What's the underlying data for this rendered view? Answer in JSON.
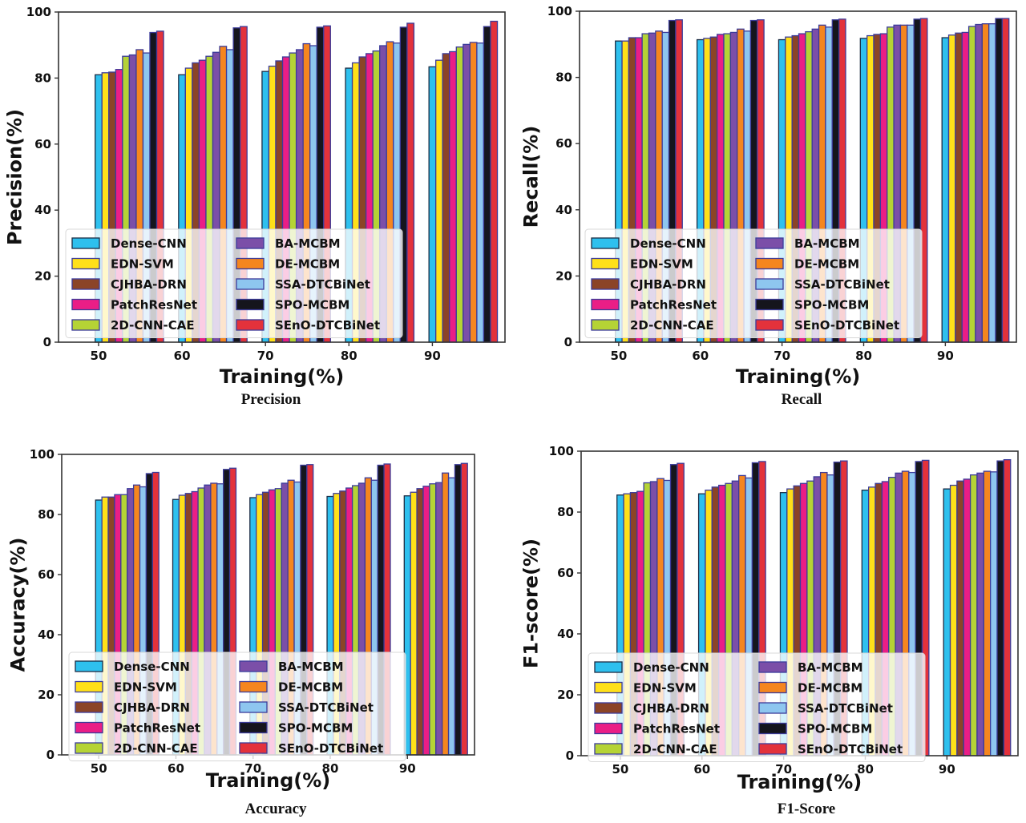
{
  "series_names": [
    "Dense-CNN",
    "EDN-SVM",
    "CJHBA-DRN",
    "PatchResNet",
    "2D-CNN-CAE",
    "BA-MCBM",
    "DE-MCBM",
    "SSA-DTCBiNet",
    "SPO-MCBM",
    "SEnO-DTCBiNet"
  ],
  "series_colors": [
    "#2ec0ee",
    "#ffe019",
    "#8b4427",
    "#ea1e86",
    "#b5d335",
    "#7b4fa8",
    "#f5861f",
    "#8ec6ef",
    "#15151d",
    "#e3323b"
  ],
  "chart_data": [
    {
      "type": "bar",
      "title": "Precision",
      "xlabel": "Training(%)",
      "ylabel": "Precision(%)",
      "categories": [
        "50",
        "60",
        "70",
        "80",
        "90"
      ],
      "ylim": [
        0,
        100
      ],
      "yticks": [
        "0",
        "20",
        "40",
        "60",
        "80",
        "100"
      ],
      "legend": "lower-left",
      "series": [
        {
          "name": "Dense-CNN",
          "values": [
            81.0,
            81.0,
            82.0,
            83.0,
            83.4
          ]
        },
        {
          "name": "EDN-SVM",
          "values": [
            81.6,
            83.0,
            83.6,
            84.6,
            85.4
          ]
        },
        {
          "name": "CJHBA-DRN",
          "values": [
            81.8,
            84.6,
            85.2,
            86.4,
            87.4
          ]
        },
        {
          "name": "PatchResNet",
          "values": [
            82.6,
            85.4,
            86.4,
            87.4,
            88.0
          ]
        },
        {
          "name": "2D-CNN-CAE",
          "values": [
            86.6,
            86.6,
            87.6,
            88.2,
            89.4
          ]
        },
        {
          "name": "BA-MCBM",
          "values": [
            87.0,
            87.8,
            88.6,
            89.8,
            90.2
          ]
        },
        {
          "name": "DE-MCBM",
          "values": [
            88.6,
            89.6,
            90.4,
            91.0,
            90.8
          ]
        },
        {
          "name": "SSA-DTCBiNet",
          "values": [
            87.6,
            88.6,
            89.8,
            90.6,
            90.6
          ]
        },
        {
          "name": "SPO-MCBM",
          "values": [
            93.8,
            95.2,
            95.4,
            95.4,
            95.6
          ]
        },
        {
          "name": "SEnO-DTCBiNet",
          "values": [
            94.2,
            95.6,
            95.8,
            96.6,
            97.2
          ]
        }
      ]
    },
    {
      "type": "bar",
      "title": "Recall",
      "xlabel": "Training(%)",
      "ylabel": "Recall(%)",
      "categories": [
        "50",
        "60",
        "70",
        "80",
        "90"
      ],
      "ylim": [
        0,
        100
      ],
      "yticks": [
        "0",
        "20",
        "40",
        "60",
        "80",
        "100"
      ],
      "legend": "lower-left",
      "series": [
        {
          "name": "Dense-CNN",
          "values": [
            91.0,
            91.4,
            91.4,
            91.8,
            92.0
          ]
        },
        {
          "name": "EDN-SVM",
          "values": [
            91.0,
            91.8,
            92.2,
            92.6,
            92.8
          ]
        },
        {
          "name": "CJHBA-DRN",
          "values": [
            92.0,
            92.2,
            92.6,
            93.0,
            93.4
          ]
        },
        {
          "name": "PatchResNet",
          "values": [
            92.0,
            93.0,
            93.2,
            93.2,
            93.6
          ]
        },
        {
          "name": "2D-CNN-CAE",
          "values": [
            93.2,
            93.2,
            93.8,
            95.2,
            95.4
          ]
        },
        {
          "name": "BA-MCBM",
          "values": [
            93.4,
            93.6,
            94.6,
            95.8,
            96.0
          ]
        },
        {
          "name": "DE-MCBM",
          "values": [
            94.0,
            94.6,
            95.8,
            95.8,
            96.2
          ]
        },
        {
          "name": "SSA-DTCBiNet",
          "values": [
            93.6,
            94.0,
            95.2,
            95.8,
            96.2
          ]
        },
        {
          "name": "SPO-MCBM",
          "values": [
            97.2,
            97.2,
            97.4,
            97.6,
            97.8
          ]
        },
        {
          "name": "SEnO-DTCBiNet",
          "values": [
            97.4,
            97.4,
            97.6,
            97.8,
            97.8
          ]
        }
      ]
    },
    {
      "type": "bar",
      "title": "Accuracy",
      "xlabel": "Training(%)",
      "ylabel": "Accuracy(%)",
      "categories": [
        "50",
        "60",
        "70",
        "80",
        "90"
      ],
      "ylim": [
        0,
        100
      ],
      "yticks": [
        "0",
        "20",
        "40",
        "60",
        "80",
        "100"
      ],
      "legend": "lower-left",
      "series": [
        {
          "name": "Dense-CNN",
          "values": [
            84.8,
            85.0,
            85.6,
            86.0,
            86.2
          ]
        },
        {
          "name": "EDN-SVM",
          "values": [
            85.8,
            86.4,
            86.6,
            87.0,
            87.4
          ]
        },
        {
          "name": "CJHBA-DRN",
          "values": [
            85.8,
            87.0,
            87.4,
            87.8,
            88.6
          ]
        },
        {
          "name": "PatchResNet",
          "values": [
            86.6,
            87.6,
            88.2,
            88.8,
            89.4
          ]
        },
        {
          "name": "2D-CNN-CAE",
          "values": [
            86.6,
            88.8,
            88.6,
            89.6,
            90.2
          ]
        },
        {
          "name": "BA-MCBM",
          "values": [
            88.6,
            89.8,
            90.4,
            90.4,
            90.6
          ]
        },
        {
          "name": "DE-MCBM",
          "values": [
            89.8,
            90.4,
            91.4,
            92.2,
            93.8
          ]
        },
        {
          "name": "SSA-DTCBiNet",
          "values": [
            89.2,
            90.2,
            90.8,
            91.4,
            92.2
          ]
        },
        {
          "name": "SPO-MCBM",
          "values": [
            93.6,
            95.0,
            96.4,
            96.4,
            96.6
          ]
        },
        {
          "name": "SEnO-DTCBiNet",
          "values": [
            94.0,
            95.4,
            96.6,
            96.8,
            97.0
          ]
        }
      ]
    },
    {
      "type": "bar",
      "title": "F1-Score",
      "xlabel": "Training(%)",
      "ylabel": "F1-score(%)",
      "categories": [
        "50",
        "60",
        "70",
        "80",
        "90"
      ],
      "ylim": [
        0,
        100
      ],
      "yticks": [
        "0",
        "20",
        "40",
        "60",
        "80",
        "100"
      ],
      "legend": "lower-left",
      "series": [
        {
          "name": "Dense-CNN",
          "values": [
            85.6,
            86.0,
            86.4,
            87.2,
            87.6
          ]
        },
        {
          "name": "EDN-SVM",
          "values": [
            86.0,
            87.2,
            87.6,
            88.2,
            88.8
          ]
        },
        {
          "name": "CJHBA-DRN",
          "values": [
            86.4,
            88.2,
            88.6,
            89.4,
            90.2
          ]
        },
        {
          "name": "PatchResNet",
          "values": [
            86.8,
            88.8,
            89.4,
            90.0,
            90.8
          ]
        },
        {
          "name": "2D-CNN-CAE",
          "values": [
            89.6,
            89.4,
            90.2,
            91.4,
            92.2
          ]
        },
        {
          "name": "BA-MCBM",
          "values": [
            90.0,
            90.2,
            91.6,
            92.8,
            92.8
          ]
        },
        {
          "name": "DE-MCBM",
          "values": [
            91.0,
            92.0,
            93.0,
            93.4,
            93.4
          ]
        },
        {
          "name": "SSA-DTCBiNet",
          "values": [
            90.4,
            91.2,
            92.2,
            93.0,
            93.2
          ]
        },
        {
          "name": "SPO-MCBM",
          "values": [
            95.6,
            96.2,
            96.4,
            96.6,
            96.8
          ]
        },
        {
          "name": "SEnO-DTCBiNet",
          "values": [
            96.0,
            96.6,
            96.8,
            97.0,
            97.2
          ]
        }
      ]
    }
  ]
}
